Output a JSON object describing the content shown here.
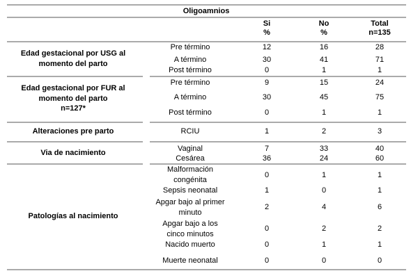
{
  "title": "Oligoamnios",
  "header": [
    [
      "Si",
      "%"
    ],
    [
      "No",
      "%"
    ],
    [
      "Total",
      "n=135"
    ]
  ],
  "groups": [
    {
      "label": [
        "Edad gestacional por USG al",
        "momento del parto"
      ],
      "rows": [
        {
          "label": [
            "Pre término"
          ],
          "values": [
            12,
            16,
            28
          ]
        },
        {
          "label": [
            "A término"
          ],
          "values": [
            30,
            41,
            71
          ]
        },
        {
          "label": [
            "Post término"
          ],
          "values": [
            0,
            1,
            1
          ]
        }
      ]
    },
    {
      "label": [
        "Edad gestacional por FUR al",
        "momento del parto",
        "n=127*"
      ],
      "rows": [
        {
          "label": [
            "Pre término"
          ],
          "values": [
            9,
            15,
            24
          ]
        },
        {
          "label": [
            "A término"
          ],
          "values": [
            30,
            45,
            75
          ]
        },
        {
          "label": [
            "Post término"
          ],
          "values": [
            0,
            1,
            1
          ]
        }
      ]
    },
    {
      "label": [
        "Alteraciones pre parto"
      ],
      "rows": [
        {
          "label": [
            "RCIU"
          ],
          "values": [
            1,
            2,
            3
          ]
        }
      ]
    },
    {
      "label": [
        "Via de nacimiento"
      ],
      "rows": [
        {
          "label": [
            "Vaginal"
          ],
          "values": [
            7,
            33,
            40
          ]
        },
        {
          "label": [
            "Cesárea"
          ],
          "values": [
            36,
            24,
            60
          ]
        }
      ]
    },
    {
      "label": [
        "Patologías al nacimiento"
      ],
      "rows": [
        {
          "label": [
            "Malformación",
            "congénita"
          ],
          "values": [
            0,
            1,
            1
          ]
        },
        {
          "label": [
            "Sepsis neonatal"
          ],
          "values": [
            1,
            0,
            1
          ]
        },
        {
          "label": [
            "Apgar bajo al primer",
            "minuto"
          ],
          "values": [
            2,
            4,
            6
          ]
        },
        {
          "label": [
            "Apgar bajo a los",
            "cinco minutos"
          ],
          "values": [
            0,
            2,
            2
          ]
        },
        {
          "label": [
            "Nacido muerto"
          ],
          "values": [
            0,
            1,
            1
          ]
        },
        {
          "label": [
            "Muerte neonatal"
          ],
          "values": [
            0,
            0,
            0
          ]
        }
      ]
    }
  ]
}
